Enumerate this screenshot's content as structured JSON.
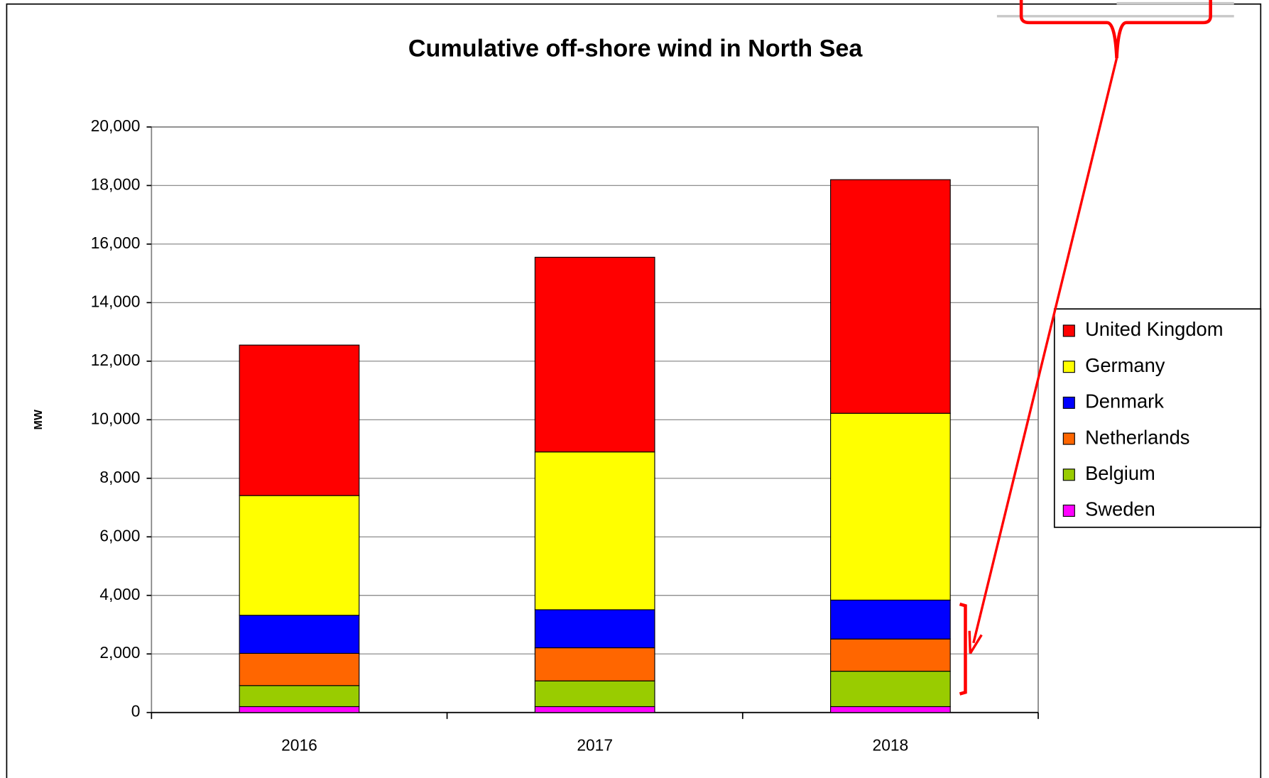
{
  "chart_data": {
    "type": "bar",
    "stacked": true,
    "title": "Cumulative off-shore wind in North Sea",
    "y_label": "MW",
    "categories": [
      "2016",
      "2017",
      "2018"
    ],
    "series": [
      {
        "name": "Sweden",
        "color": "#ff00ff",
        "values": [
          200,
          200,
          200
        ]
      },
      {
        "name": "Belgium",
        "color": "#99cc00",
        "values": [
          720,
          880,
          1210
        ]
      },
      {
        "name": "Netherlands",
        "color": "#ff6600",
        "values": [
          1100,
          1130,
          1100
        ]
      },
      {
        "name": "Denmark",
        "color": "#0000ff",
        "values": [
          1300,
          1300,
          1330
        ]
      },
      {
        "name": "Germany",
        "color": "#ffff00",
        "values": [
          4090,
          5390,
          6380
        ]
      },
      {
        "name": "United Kingdom",
        "color": "#ff0000",
        "values": [
          5140,
          6650,
          7980
        ]
      }
    ],
    "ylim": [
      0,
      20000
    ],
    "yticks": [
      0,
      {
        "value": 2000,
        "label": "2,000"
      },
      {
        "value": 4000,
        "label": "4,000"
      },
      {
        "value": 6000,
        "label": "6,000"
      },
      {
        "value": 8000,
        "label": "8,000"
      },
      {
        "value": 10000,
        "label": "10,000"
      },
      {
        "value": 12000,
        "label": "12,000"
      },
      {
        "value": 14000,
        "label": "14,000"
      },
      {
        "value": 16000,
        "label": "16,000"
      },
      {
        "value": 18000,
        "label": "18,000"
      },
      {
        "value": 20000,
        "label": "20,000"
      }
    ],
    "grid": true,
    "legend": "right"
  }
}
